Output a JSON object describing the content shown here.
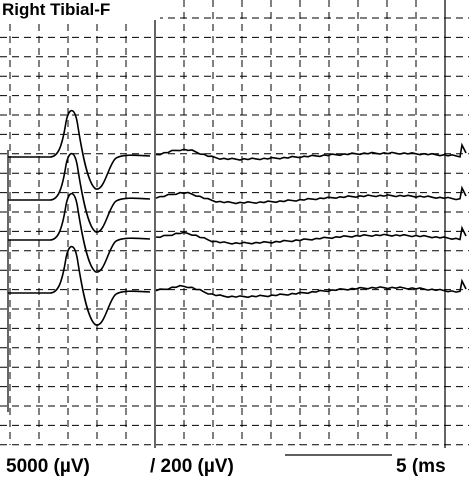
{
  "header": {
    "title": "Right Tibial-F"
  },
  "footer": {
    "sensitivity": "5000 (µV)",
    "trace_gain": "/ 200 (µV)",
    "sweep": "5 (ms"
  }
}
